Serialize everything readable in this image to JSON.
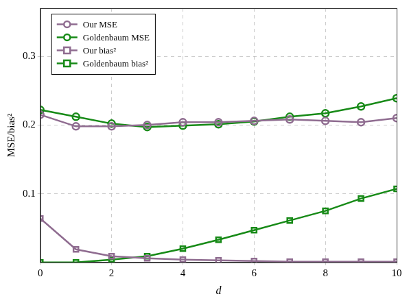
{
  "chart_data": {
    "type": "line",
    "x_label": "d",
    "y_label": "MSE/bias²",
    "x": [
      0,
      1,
      2,
      3,
      4,
      5,
      6,
      7,
      8,
      9,
      10
    ],
    "series": [
      {
        "name": "Our MSE",
        "color": "#8f6c90",
        "marker": "circle",
        "line_style": "solid",
        "values": [
          0.215,
          0.198,
          0.198,
          0.2,
          0.204,
          0.204,
          0.206,
          0.208,
          0.206,
          0.204,
          0.21
        ]
      },
      {
        "name": "Goldenbaum MSE",
        "color": "#178a17",
        "marker": "circle",
        "line_style": "solid",
        "values": [
          0.222,
          0.212,
          0.202,
          0.197,
          0.199,
          0.201,
          0.205,
          0.212,
          0.217,
          0.227,
          0.239
        ]
      },
      {
        "name": "Our bias²",
        "color": "#8f6c90",
        "marker": "square",
        "line_style": "solid",
        "values": [
          0.064,
          0.019,
          0.009,
          0.006,
          0.004,
          0.003,
          0.002,
          0.001,
          0.001,
          0.001,
          0.001
        ]
      },
      {
        "name": "Goldenbaum bias²",
        "color": "#178a17",
        "marker": "square",
        "line_style": "solid",
        "values": [
          0.0,
          0.0,
          0.004,
          0.009,
          0.02,
          0.033,
          0.047,
          0.061,
          0.075,
          0.093,
          0.107
        ]
      }
    ],
    "xlim": [
      0,
      10
    ],
    "xticks": [
      0,
      2,
      4,
      6,
      8,
      10
    ],
    "ylim": [
      0,
      0.37
    ],
    "yticks": [
      0.1,
      0.2,
      0.3
    ],
    "grid": true,
    "legend": "upper left"
  }
}
